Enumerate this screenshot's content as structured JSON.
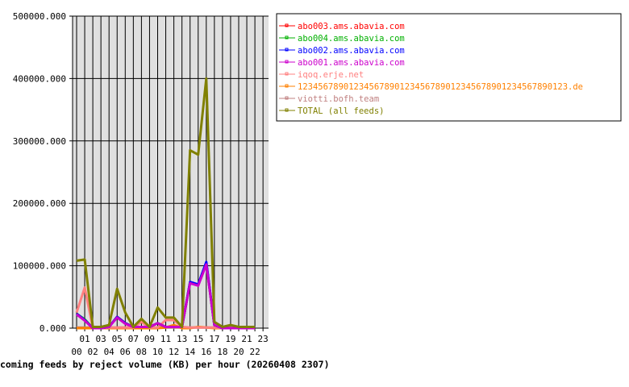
{
  "chart_data": {
    "type": "line",
    "title": "coming feeds by reject volume (KB) per hour (20260408 2307)",
    "xlabel": "",
    "ylabel": "",
    "ylim": [
      0,
      500000
    ],
    "yticks": [
      "0.000",
      "100000.000",
      "200000.000",
      "300000.000",
      "400000.000",
      "500000.000"
    ],
    "ytick_values": [
      0,
      100000,
      200000,
      300000,
      400000,
      500000
    ],
    "x": [
      0,
      1,
      2,
      3,
      4,
      5,
      6,
      7,
      8,
      9,
      10,
      11,
      12,
      13,
      14,
      15,
      16,
      17,
      18,
      19,
      20,
      21,
      22
    ],
    "xtick_labels": [
      "00",
      "01",
      "02",
      "03",
      "04",
      "05",
      "06",
      "07",
      "08",
      "09",
      "10",
      "11",
      "12",
      "13",
      "14",
      "15",
      "16",
      "17",
      "18",
      "19",
      "20",
      "21",
      "22",
      "23"
    ],
    "grid": true,
    "legend_placement": "right",
    "series": [
      {
        "name": "abo003.ams.abavia.com",
        "color": "#ff0000",
        "values": [
          23000,
          13000,
          0,
          0,
          2000,
          18000,
          8000,
          2000,
          2000,
          2000,
          8000,
          2000,
          2000,
          2000,
          73000,
          69000,
          104000,
          5000,
          0,
          0,
          0,
          0,
          0
        ]
      },
      {
        "name": "abo004.ams.abavia.com",
        "color": "#00b000",
        "values": [
          23000,
          14000,
          0,
          0,
          2000,
          18000,
          8000,
          2000,
          2000,
          2000,
          8000,
          2000,
          2000,
          2000,
          73000,
          69000,
          104000,
          5000,
          0,
          0,
          0,
          0,
          0
        ]
      },
      {
        "name": "abo002.ams.abavia.com",
        "color": "#0000ff",
        "values": [
          23000,
          13000,
          0,
          0,
          2000,
          18000,
          8000,
          2000,
          2000,
          2000,
          8000,
          2000,
          2000,
          2000,
          74000,
          70000,
          106000,
          5000,
          0,
          0,
          0,
          0,
          0
        ]
      },
      {
        "name": "abo001.ams.abavia.com",
        "color": "#cc00cc",
        "values": [
          22000,
          12000,
          0,
          0,
          2000,
          17000,
          7000,
          2000,
          2000,
          2000,
          8000,
          2000,
          2000,
          2000,
          72000,
          68000,
          102000,
          5000,
          0,
          0,
          0,
          0,
          0
        ]
      },
      {
        "name": "iqoq.erje.net",
        "color": "#ff8080",
        "values": [
          25000,
          65000,
          0,
          0,
          1000,
          1000,
          1000,
          1000,
          10000,
          1000,
          1000,
          13000,
          13000,
          2000,
          1000,
          1000,
          1000,
          1000,
          0,
          0,
          0,
          0,
          0
        ]
      },
      {
        "name": "12345678901234567890123456789012345678901234567890123.de",
        "color": "#ff8000",
        "values": [
          0,
          0,
          0,
          0,
          0,
          0,
          0,
          0,
          0,
          0,
          0,
          1000,
          5000,
          0,
          0,
          2000,
          1000,
          0,
          0,
          0,
          0,
          0,
          0
        ]
      },
      {
        "name": "viotti.bofh.team",
        "color": "#c08080",
        "values": [
          1000,
          1000,
          1000,
          1000,
          1000,
          1000,
          1000,
          1000,
          1000,
          1000,
          1000,
          1000,
          1000,
          1000,
          1000,
          1000,
          1000,
          1000,
          1000,
          1000,
          1000,
          1000,
          1000
        ]
      },
      {
        "name": "TOTAL (all feeds)",
        "color": "#808000",
        "values": [
          108000,
          110000,
          2000,
          2000,
          5000,
          63000,
          25000,
          2000,
          15000,
          2000,
          33000,
          17000,
          17000,
          2000,
          285000,
          278000,
          400000,
          10000,
          2000,
          5000,
          2000,
          2000,
          2000
        ]
      }
    ]
  }
}
